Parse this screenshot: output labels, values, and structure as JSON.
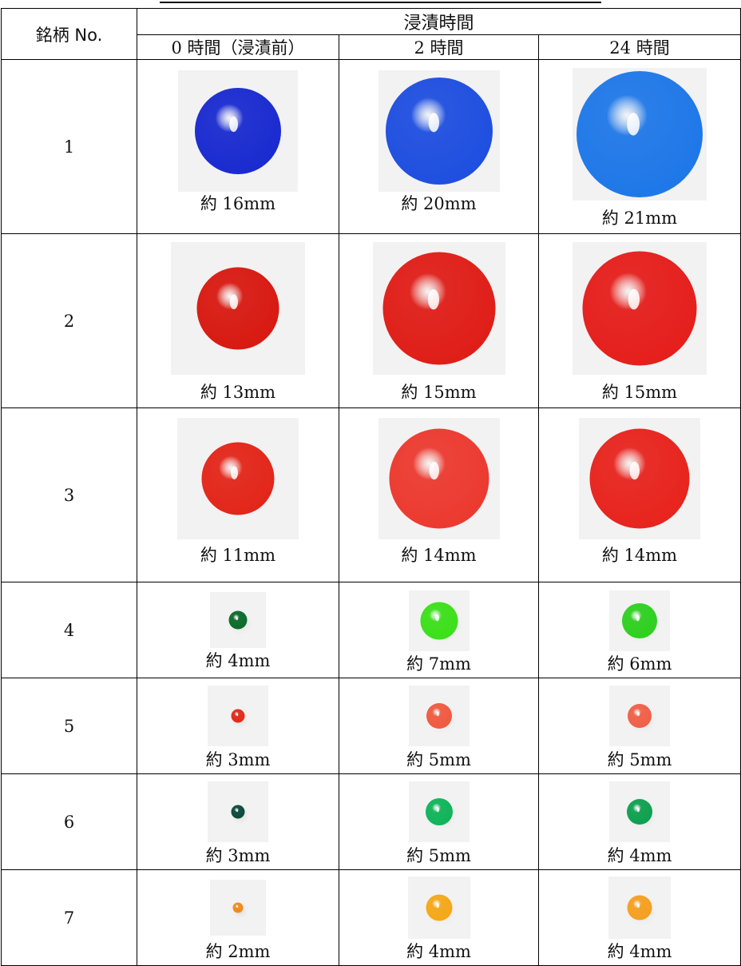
{
  "header": {
    "brand_label": "銘柄 No.",
    "group_label": "浸漬時間",
    "columns": [
      "0 時間（浸漬前）",
      "2 時間",
      "24 時間"
    ]
  },
  "rows": [
    {
      "no": "1",
      "color": "#1f2fc4",
      "sizes": [
        "約 16mm",
        "約 20mm",
        "約 21mm"
      ],
      "fracs": [
        0.72,
        0.88,
        0.95
      ]
    },
    {
      "no": "2",
      "color": "#d41616",
      "sizes": [
        "約 13mm",
        "約 15mm",
        "約 15mm"
      ],
      "fracs": [
        0.62,
        0.85,
        0.86
      ]
    },
    {
      "no": "3",
      "color": "#db1e18",
      "sizes": [
        "約 11mm",
        "約 14mm",
        "約 14mm"
      ],
      "fracs": [
        0.6,
        0.82,
        0.82
      ]
    },
    {
      "no": "4",
      "color": "#0b6b2a",
      "sizes": [
        "約 4mm",
        "約 7mm",
        "約 6mm"
      ],
      "fracs": [
        0.33,
        0.62,
        0.58
      ]
    },
    {
      "no": "5",
      "color": "#e02a1a",
      "sizes": [
        "約 3mm",
        "約 5mm",
        "約 5mm"
      ],
      "fracs": [
        0.22,
        0.42,
        0.4
      ]
    },
    {
      "no": "6",
      "color": "#0a5a3a",
      "sizes": [
        "約 3mm",
        "約 5mm",
        "約 4mm"
      ],
      "fracs": [
        0.22,
        0.45,
        0.42
      ]
    },
    {
      "no": "7",
      "color": "#f08a1a",
      "sizes": [
        "約 2mm",
        "約 4mm",
        "約 4mm"
      ],
      "fracs": [
        0.18,
        0.42,
        0.4
      ]
    }
  ],
  "ball_colors": {
    "row1": [
      "#1a2bd0",
      "#1f4fe0",
      "#1f78e8"
    ],
    "row2": [
      "#d81a12",
      "#e01e18",
      "#e51f1c"
    ],
    "row3": [
      "#e3261a",
      "#ec3a30",
      "#e8241e"
    ],
    "row4": [
      "#0b6b2a",
      "#3ce01a",
      "#2fd020"
    ],
    "row5": [
      "#e22a18",
      "#f05a40",
      "#f06048"
    ],
    "row6": [
      "#0a4a3a",
      "#10b45a",
      "#0fa050"
    ],
    "row7": [
      "#f08a1a",
      "#f5a818",
      "#f5a020"
    ]
  }
}
